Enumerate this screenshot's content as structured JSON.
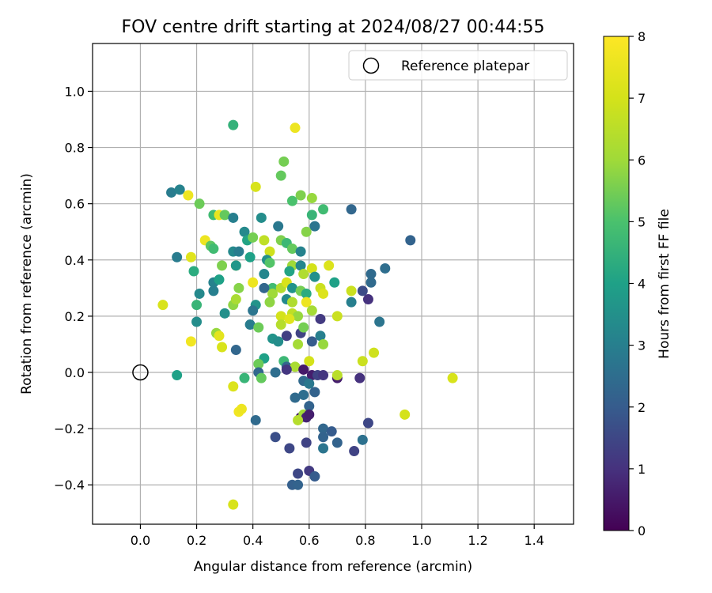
{
  "chart_data": {
    "type": "scatter",
    "title": "FOV centre drift starting at 2024/08/27 00:44:55",
    "xlabel": "Angular distance from reference (arcmin)",
    "ylabel": "Rotation from reference (arcmin)",
    "xlim": [
      -0.17,
      1.54
    ],
    "ylim": [
      -0.54,
      1.17
    ],
    "x_ticks": [
      "0.0",
      "0.2",
      "0.4",
      "0.6",
      "0.8",
      "1.0",
      "1.2",
      "1.4"
    ],
    "y_ticks": [
      "−0.4",
      "−0.2",
      "0.0",
      "0.2",
      "0.4",
      "0.6",
      "0.8",
      "1.0"
    ],
    "grid": true,
    "legend": {
      "label": "Reference platepar",
      "placement": "top-right"
    },
    "reference_point": {
      "x": 0.0,
      "y": 0.0
    },
    "colorbar": {
      "label": "Hours from first FF file",
      "colormap": "viridis",
      "range": [
        0,
        8
      ],
      "ticks": [
        "0",
        "1",
        "2",
        "3",
        "4",
        "5",
        "6",
        "7",
        "8"
      ]
    },
    "points": [
      [
        0.33,
        0.88,
        4.5
      ],
      [
        0.55,
        0.87,
        7.6
      ],
      [
        0.51,
        0.75,
        5.5
      ],
      [
        0.5,
        0.7,
        5.3
      ],
      [
        0.11,
        0.64,
        2.9
      ],
      [
        0.14,
        0.65,
        3.1
      ],
      [
        0.17,
        0.63,
        7.6
      ],
      [
        0.41,
        0.66,
        7.1
      ],
      [
        0.57,
        0.63,
        5.6
      ],
      [
        0.61,
        0.62,
        5.9
      ],
      [
        0.54,
        0.61,
        5.0
      ],
      [
        0.21,
        0.6,
        5.4
      ],
      [
        0.65,
        0.58,
        4.8
      ],
      [
        0.75,
        0.58,
        2.3
      ],
      [
        0.26,
        0.56,
        4.8
      ],
      [
        0.28,
        0.56,
        7.5
      ],
      [
        0.3,
        0.56,
        5.3
      ],
      [
        0.33,
        0.55,
        3.0
      ],
      [
        0.43,
        0.55,
        3.4
      ],
      [
        0.61,
        0.56,
        4.6
      ],
      [
        0.62,
        0.52,
        2.7
      ],
      [
        0.49,
        0.52,
        2.8
      ],
      [
        0.59,
        0.5,
        5.7
      ],
      [
        0.37,
        0.5,
        3.3
      ],
      [
        0.38,
        0.47,
        4.1
      ],
      [
        0.4,
        0.48,
        5.5
      ],
      [
        0.44,
        0.47,
        6.6
      ],
      [
        0.5,
        0.47,
        5.6
      ],
      [
        0.52,
        0.46,
        4.7
      ],
      [
        0.54,
        0.44,
        5.3
      ],
      [
        0.96,
        0.47,
        2.2
      ],
      [
        0.23,
        0.47,
        7.6
      ],
      [
        0.25,
        0.45,
        5.2
      ],
      [
        0.26,
        0.44,
        4.8
      ],
      [
        0.33,
        0.43,
        3.3
      ],
      [
        0.35,
        0.43,
        2.9
      ],
      [
        0.46,
        0.43,
        6.9
      ],
      [
        0.57,
        0.43,
        3.1
      ],
      [
        0.13,
        0.41,
        2.9
      ],
      [
        0.18,
        0.41,
        7.3
      ],
      [
        0.39,
        0.41,
        4.0
      ],
      [
        0.45,
        0.4,
        3.5
      ],
      [
        0.46,
        0.39,
        5.1
      ],
      [
        0.34,
        0.38,
        7.9
      ],
      [
        0.29,
        0.38,
        5.6
      ],
      [
        0.54,
        0.38,
        6.0
      ],
      [
        0.57,
        0.38,
        3.2
      ],
      [
        0.61,
        0.37,
        7.0
      ],
      [
        0.67,
        0.38,
        7.2
      ],
      [
        0.87,
        0.37,
        2.5
      ],
      [
        0.19,
        0.36,
        4.3
      ],
      [
        0.34,
        0.38,
        3.7
      ],
      [
        0.44,
        0.35,
        3.2
      ],
      [
        0.53,
        0.36,
        4.1
      ],
      [
        0.58,
        0.35,
        6.3
      ],
      [
        0.62,
        0.34,
        3.5
      ],
      [
        0.82,
        0.35,
        2.4
      ],
      [
        0.26,
        0.32,
        3.1
      ],
      [
        0.28,
        0.33,
        4.0
      ],
      [
        0.4,
        0.32,
        7.6
      ],
      [
        0.47,
        0.3,
        4.8
      ],
      [
        0.5,
        0.3,
        6.4
      ],
      [
        0.52,
        0.32,
        7.1
      ],
      [
        0.54,
        0.3,
        3.6
      ],
      [
        0.64,
        0.3,
        6.8
      ],
      [
        0.69,
        0.32,
        4.0
      ],
      [
        0.82,
        0.32,
        2.4
      ],
      [
        0.21,
        0.28,
        3.3
      ],
      [
        0.26,
        0.29,
        3.0
      ],
      [
        0.35,
        0.3,
        5.7
      ],
      [
        0.44,
        0.3,
        2.3
      ],
      [
        0.47,
        0.28,
        6.0
      ],
      [
        0.57,
        0.29,
        5.5
      ],
      [
        0.59,
        0.28,
        4.3
      ],
      [
        0.65,
        0.28,
        7.2
      ],
      [
        0.75,
        0.29,
        6.8
      ],
      [
        0.79,
        0.29,
        1.6
      ],
      [
        0.81,
        0.26,
        1.0
      ],
      [
        0.08,
        0.24,
        7.1
      ],
      [
        0.2,
        0.24,
        4.6
      ],
      [
        0.33,
        0.24,
        5.8
      ],
      [
        0.34,
        0.26,
        6.2
      ],
      [
        0.41,
        0.24,
        3.6
      ],
      [
        0.46,
        0.25,
        5.8
      ],
      [
        0.52,
        0.26,
        3.3
      ],
      [
        0.54,
        0.25,
        6.3
      ],
      [
        0.59,
        0.25,
        7.6
      ],
      [
        0.61,
        0.22,
        6.1
      ],
      [
        0.75,
        0.25,
        3.0
      ],
      [
        0.3,
        0.21,
        3.5
      ],
      [
        0.4,
        0.22,
        2.7
      ],
      [
        0.5,
        0.2,
        7.0
      ],
      [
        0.54,
        0.21,
        6.6
      ],
      [
        0.56,
        0.2,
        5.9
      ],
      [
        0.64,
        0.19,
        1.2
      ],
      [
        0.7,
        0.2,
        6.8
      ],
      [
        0.85,
        0.18,
        2.7
      ],
      [
        0.2,
        0.18,
        3.4
      ],
      [
        0.39,
        0.17,
        2.9
      ],
      [
        0.42,
        0.16,
        5.4
      ],
      [
        0.5,
        0.17,
        6.4
      ],
      [
        0.53,
        0.19,
        7.3
      ],
      [
        0.57,
        0.14,
        1.4
      ],
      [
        0.58,
        0.16,
        5.5
      ],
      [
        0.64,
        0.13,
        3.0
      ],
      [
        0.27,
        0.14,
        5.9
      ],
      [
        0.28,
        0.13,
        7.4
      ],
      [
        0.52,
        0.13,
        1.3
      ],
      [
        0.47,
        0.12,
        3.6
      ],
      [
        0.49,
        0.11,
        3.4
      ],
      [
        0.61,
        0.11,
        2.0
      ],
      [
        0.18,
        0.11,
        7.7
      ],
      [
        0.29,
        0.09,
        7.1
      ],
      [
        0.56,
        0.1,
        6.1
      ],
      [
        0.65,
        0.1,
        5.9
      ],
      [
        0.34,
        0.08,
        2.3
      ],
      [
        0.44,
        0.05,
        4.0
      ],
      [
        0.51,
        0.04,
        4.7
      ],
      [
        0.52,
        0.02,
        2.3
      ],
      [
        0.6,
        0.04,
        7.0
      ],
      [
        0.42,
        0.03,
        5.4
      ],
      [
        0.83,
        0.07,
        6.9
      ],
      [
        0.79,
        0.04,
        6.8
      ],
      [
        0.55,
        0.02,
        6.2
      ],
      [
        0.52,
        0.01,
        1.1
      ],
      [
        0.58,
        0.01,
        0.5
      ],
      [
        0.61,
        -0.01,
        0.6
      ],
      [
        0.63,
        -0.01,
        1.4
      ],
      [
        0.65,
        -0.01,
        1.1
      ],
      [
        0.7,
        -0.02,
        0.6
      ],
      [
        0.7,
        -0.01,
        6.5
      ],
      [
        0.78,
        -0.02,
        1.0
      ],
      [
        0.13,
        -0.01,
        4.0
      ],
      [
        0.42,
        0.0,
        2.3
      ],
      [
        0.43,
        -0.02,
        5.3
      ],
      [
        0.37,
        -0.02,
        4.6
      ],
      [
        0.48,
        0.0,
        2.5
      ],
      [
        0.58,
        -0.03,
        2.4
      ],
      [
        0.6,
        -0.04,
        2.8
      ],
      [
        0.33,
        -0.05,
        7.2
      ],
      [
        0.58,
        -0.08,
        2.5
      ],
      [
        0.62,
        -0.07,
        2.2
      ],
      [
        0.55,
        -0.09,
        2.4
      ],
      [
        0.6,
        -0.12,
        2.2
      ],
      [
        0.35,
        -0.14,
        7.7
      ],
      [
        0.36,
        -0.13,
        7.6
      ],
      [
        0.41,
        -0.17,
        2.4
      ],
      [
        0.57,
        -0.16,
        0.5
      ],
      [
        0.58,
        -0.15,
        6.0
      ],
      [
        0.59,
        -0.16,
        0.7
      ],
      [
        0.6,
        -0.15,
        0.6
      ],
      [
        0.56,
        -0.17,
        6.4
      ],
      [
        0.94,
        -0.15,
        7.0
      ],
      [
        1.11,
        -0.02,
        7.1
      ],
      [
        0.81,
        -0.18,
        1.5
      ],
      [
        0.65,
        -0.2,
        2.3
      ],
      [
        0.68,
        -0.21,
        2.0
      ],
      [
        0.65,
        -0.23,
        2.2
      ],
      [
        0.48,
        -0.23,
        1.7
      ],
      [
        0.7,
        -0.25,
        2.2
      ],
      [
        0.79,
        -0.24,
        2.6
      ],
      [
        0.59,
        -0.25,
        1.4
      ],
      [
        0.53,
        -0.27,
        1.5
      ],
      [
        0.65,
        -0.27,
        2.7
      ],
      [
        0.76,
        -0.28,
        1.4
      ],
      [
        0.6,
        -0.35,
        1.2
      ],
      [
        0.56,
        -0.36,
        1.5
      ],
      [
        0.62,
        -0.37,
        2.0
      ],
      [
        0.54,
        -0.4,
        2.1
      ],
      [
        0.56,
        -0.4,
        2.2
      ],
      [
        0.33,
        -0.47,
        7.1
      ]
    ]
  }
}
